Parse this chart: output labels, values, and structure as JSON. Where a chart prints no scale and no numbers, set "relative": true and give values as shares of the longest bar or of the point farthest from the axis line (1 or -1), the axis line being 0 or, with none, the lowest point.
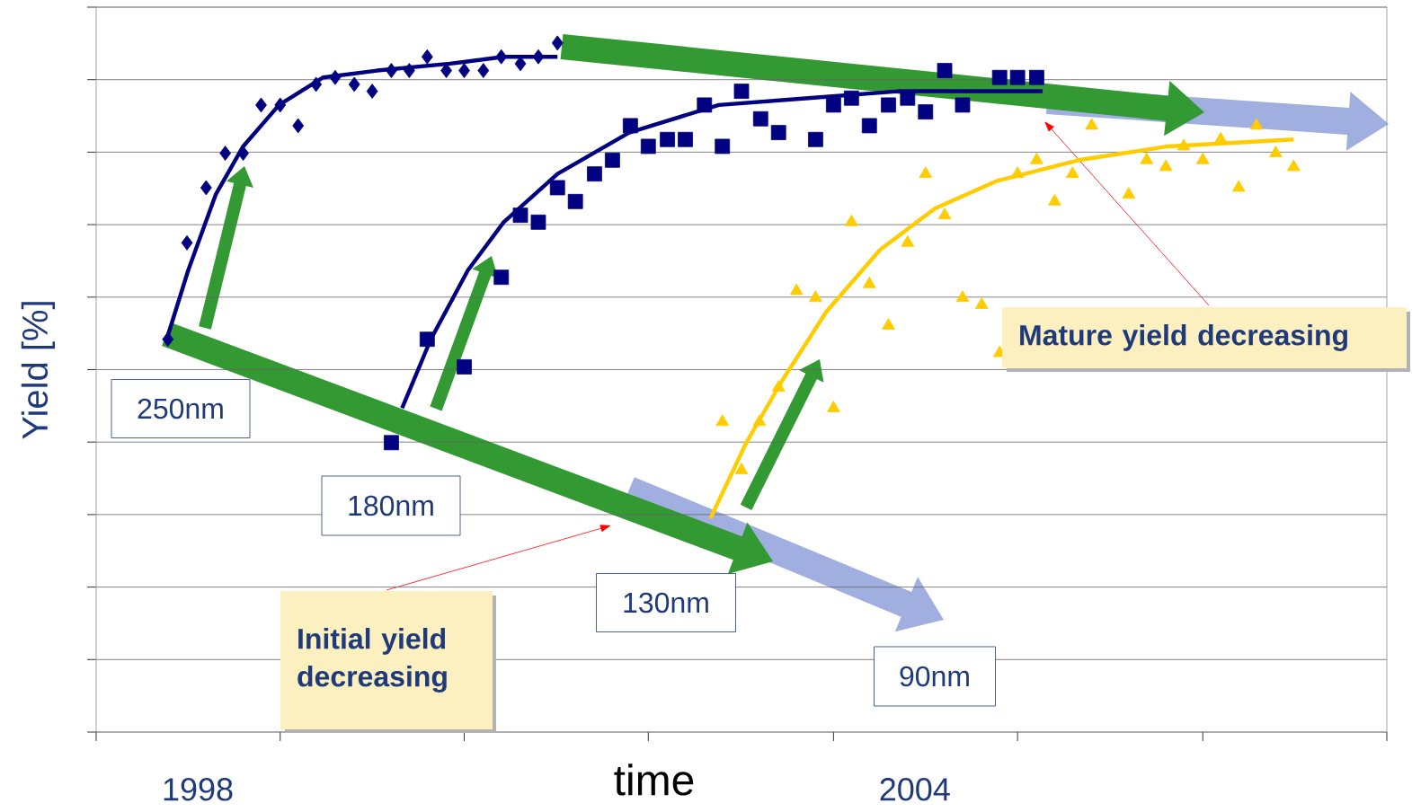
{
  "chart_data": {
    "type": "scatter",
    "relative": true,
    "xlabel": "time",
    "ylabel": "Yield [%]",
    "grid": "y",
    "tick_labels": "x",
    "xlim": [
      1997.15,
      2007.95
    ],
    "xticks": [
      {
        "value": 1997.15,
        "label": null
      },
      {
        "value": 1998.69,
        "label": null
      },
      {
        "value": 2000.23,
        "label": null
      },
      {
        "value": 2001.77,
        "label": null
      },
      {
        "value": 2003.32,
        "label": null
      },
      {
        "value": 2004.86,
        "label": null
      },
      {
        "value": 2006.41,
        "label": null
      },
      {
        "value": 2007.95,
        "label": null
      },
      {
        "value": 1998,
        "label": "1998"
      },
      {
        "value": 2004,
        "label": "2004"
      }
    ],
    "series": [
      {
        "color": "#000080",
        "marker": "diamond",
        "x": [
          1997.75,
          1997.91,
          1998.07,
          1998.23,
          1998.38,
          1998.53,
          1998.69,
          1998.84,
          1998.99,
          1999.15,
          1999.31,
          1999.46,
          1999.62,
          1999.77,
          1999.92,
          2000.08,
          2000.23,
          2000.39,
          2000.54,
          2000.7,
          2000.85,
          2001.01
        ],
        "values": [
          0.57,
          0.71,
          0.79,
          0.84,
          0.84,
          0.91,
          0.91,
          0.88,
          0.94,
          0.95,
          0.94,
          0.93,
          0.96,
          0.96,
          0.98,
          0.96,
          0.96,
          0.96,
          0.98,
          0.97,
          0.98,
          1.0
        ]
      },
      {
        "color": "#000080",
        "marker": "square",
        "x": [
          1999.62,
          1999.92,
          2000.23,
          2000.54,
          2000.7,
          2000.85,
          2001.01,
          2001.16,
          2001.32,
          2001.47,
          2001.62,
          2001.77,
          2001.93,
          2002.08,
          2002.24,
          2002.39,
          2002.55,
          2002.71,
          2002.86,
          2003.17,
          2003.32,
          2003.47,
          2003.62,
          2003.78,
          2003.94,
          2004.09,
          2004.25,
          2004.4,
          2004.71,
          2004.86,
          2005.02
        ],
        "values": [
          0.42,
          0.57,
          0.53,
          0.66,
          0.75,
          0.74,
          0.79,
          0.77,
          0.81,
          0.83,
          0.88,
          0.85,
          0.86,
          0.86,
          0.91,
          0.85,
          0.93,
          0.89,
          0.87,
          0.86,
          0.91,
          0.92,
          0.88,
          0.91,
          0.92,
          0.9,
          0.96,
          0.91,
          0.95,
          0.95,
          0.95
        ]
      },
      {
        "color": "#ffcc00",
        "marker": "triangle",
        "x": [
          2002.39,
          2002.55,
          2002.7,
          2002.86,
          2003.01,
          2003.17,
          2003.32,
          2003.47,
          2003.62,
          2003.78,
          2003.94,
          2004.09,
          2004.25,
          2004.4,
          2004.56,
          2004.71,
          2004.86,
          2005.02,
          2005.17,
          2005.32,
          2005.48,
          2005.79,
          2005.94,
          2006.1,
          2006.25,
          2006.41,
          2006.56,
          2006.71,
          2006.86,
          2007.02,
          2007.17
        ],
        "values": [
          0.45,
          0.38,
          0.45,
          0.5,
          0.64,
          0.63,
          0.47,
          0.74,
          0.65,
          0.59,
          0.71,
          0.81,
          0.75,
          0.63,
          0.62,
          0.55,
          0.81,
          0.83,
          0.77,
          0.81,
          0.88,
          0.78,
          0.83,
          0.82,
          0.85,
          0.83,
          0.86,
          0.79,
          0.88,
          0.84,
          0.82
        ]
      },
      {
        "type": "line",
        "color": "#000080",
        "x": [
          1997.74,
          1997.92,
          1998.15,
          1998.38,
          1998.68,
          1999.05,
          1999.5,
          2000.11,
          2000.56,
          2001.01
        ],
        "values": [
          0.57,
          0.67,
          0.78,
          0.85,
          0.91,
          0.95,
          0.96,
          0.97,
          0.98,
          0.98
        ]
      },
      {
        "type": "line",
        "color": "#000080",
        "x": [
          1999.71,
          1999.95,
          2000.26,
          2000.56,
          2001.01,
          2001.61,
          2002.36,
          2003.11,
          2003.86,
          2005.07
        ],
        "values": [
          0.47,
          0.57,
          0.67,
          0.74,
          0.81,
          0.87,
          0.91,
          0.92,
          0.93,
          0.93
        ]
      },
      {
        "type": "line",
        "color": "#ffcc00",
        "x": [
          2002.29,
          2002.59,
          2002.89,
          2003.26,
          2003.71,
          2004.17,
          2004.69,
          2005.37,
          2006.12,
          2007.17
        ],
        "values": [
          0.31,
          0.42,
          0.51,
          0.61,
          0.7,
          0.76,
          0.8,
          0.83,
          0.85,
          0.86
        ]
      }
    ],
    "annotations": [
      "250nm",
      "180nm",
      "130nm",
      "90nm",
      "Initial yield decreasing",
      "Mature yield decreasing"
    ]
  }
}
